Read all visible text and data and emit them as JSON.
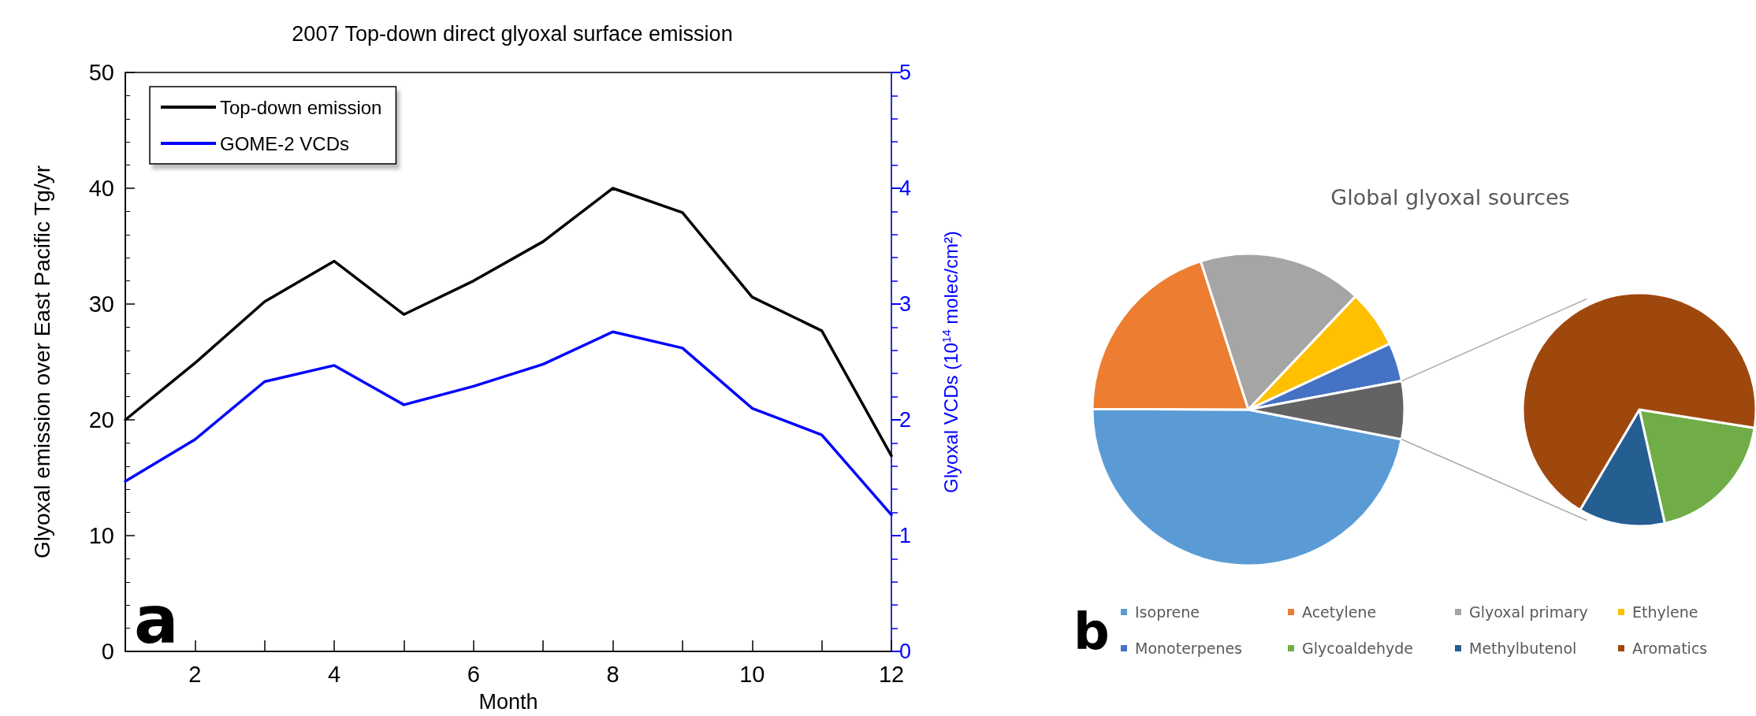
{
  "chart_data": [
    {
      "type": "line",
      "title": "2007 Top-down direct glyoxal surface emission",
      "xlabel": "Month",
      "ylabel": "Glyoxal emission over East Pacific Tg/yr",
      "y2label": "Glyoxal VCDs (10$^{14}$ molec/cm²)",
      "x": [
        1,
        2,
        3,
        4,
        5,
        6,
        7,
        8,
        9,
        10,
        11,
        12
      ],
      "series": [
        {
          "name": "Top-down emission",
          "color": "#000000",
          "values": [
            20.0,
            24.9,
            30.2,
            33.7,
            29.1,
            32.0,
            35.4,
            40.0,
            37.9,
            30.6,
            27.7,
            16.9
          ]
        },
        {
          "name": "GOME-2 VCDs",
          "color": "#0000ff",
          "axis": "y2",
          "values": [
            1.47,
            1.83,
            2.33,
            2.47,
            2.13,
            2.29,
            2.48,
            2.76,
            2.62,
            2.1,
            1.87,
            1.18
          ]
        }
      ],
      "xlim": [
        1,
        12
      ],
      "xticks": [
        {
          "value": 1,
          "label": null
        },
        2,
        {
          "value": 3,
          "label": null
        },
        4,
        {
          "value": 5,
          "label": null
        },
        6,
        {
          "value": 7,
          "label": null
        },
        8,
        {
          "value": 9,
          "label": null
        },
        10,
        {
          "value": 11,
          "label": null
        },
        12
      ],
      "ylim": [
        0,
        50
      ],
      "yticks": [
        0,
        10,
        20,
        30,
        40,
        50
      ],
      "y2lim": [
        0,
        5
      ],
      "y2ticks": [
        0,
        1,
        2,
        3,
        4,
        5
      ],
      "grid": false,
      "legend": "top left",
      "marker": "none",
      "line_style": "solid",
      "annotations": [
        "a"
      ]
    },
    {
      "type": "pie",
      "title": "Global glyoxal sources",
      "categories": [
        "Isoprene",
        "Acetylene",
        "Glyoxal primary",
        "Ethylene",
        "Monoterpenes",
        null
      ],
      "values": [
        47,
        20,
        17,
        6,
        4,
        6
      ],
      "colors": [
        "#5b9bd5",
        "#ed7d31",
        "#a5a5a5",
        "#ffc000",
        "#4472c4",
        "#636363"
      ],
      "legend": "bottom",
      "annotations": [
        "b"
      ]
    },
    {
      "type": "pie",
      "categories": [
        "Glycoaldehyde",
        "Methylbutenol",
        "Aromatics"
      ],
      "values": [
        19,
        12,
        69
      ],
      "colors": [
        "#70ad47",
        "#255e91",
        "#9e480e"
      ],
      "legend": "bottom"
    }
  ]
}
